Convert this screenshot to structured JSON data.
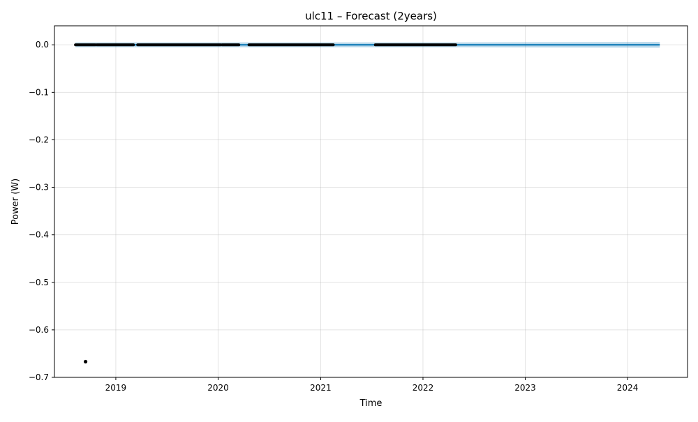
{
  "chart_data": {
    "type": "line",
    "title": "ulc11 – Forecast (2years)",
    "xlabel": "Time",
    "ylabel": "Power (W)",
    "xlim": [
      "2018-05-27",
      "2024-08-02"
    ],
    "ylim": [
      -0.7,
      0.04
    ],
    "grid": true,
    "x_ticks": [
      "2019-01-01",
      "2020-01-01",
      "2021-01-01",
      "2022-01-01",
      "2023-01-01",
      "2024-01-01"
    ],
    "x_tick_labels": [
      "2019",
      "2020",
      "2021",
      "2022",
      "2023",
      "2024"
    ],
    "y_ticks": [
      0.0,
      -0.1,
      -0.2,
      -0.3,
      -0.4,
      -0.5,
      -0.6,
      -0.7
    ],
    "y_tick_labels": [
      "0.0",
      "−0.1",
      "−0.2",
      "−0.3",
      "−0.4",
      "−0.5",
      "−0.6",
      "−0.7"
    ],
    "series": [
      {
        "role": "forecast",
        "style": "line",
        "color": "#0072B2",
        "x": [
          "2018-08-10",
          "2024-04-25"
        ],
        "y": [
          0.0,
          0.0
        ]
      },
      {
        "role": "uncertainty_interval",
        "style": "band",
        "color": "#0072B2",
        "x": [
          "2018-08-10",
          "2020-03-01",
          "2021-06-01",
          "2022-06-01",
          "2024-04-25"
        ],
        "y_lower": [
          -0.004,
          -0.004,
          -0.004,
          -0.005,
          -0.006
        ],
        "y_upper": [
          0.004,
          0.004,
          0.004,
          0.005,
          0.006
        ]
      },
      {
        "role": "observed",
        "style": "points",
        "color": "#000000",
        "segments": [
          {
            "x_start": "2018-08-10",
            "x_end": "2018-10-20",
            "y": 0.0
          },
          {
            "x_start": "2018-10-25",
            "x_end": "2019-03-05",
            "y": 0.0
          },
          {
            "x_start": "2019-03-20",
            "x_end": "2020-01-10",
            "y": 0.0
          },
          {
            "x_start": "2020-01-15",
            "x_end": "2020-03-15",
            "y": 0.0
          },
          {
            "x_start": "2020-04-20",
            "x_end": "2021-02-15",
            "y": 0.0
          },
          {
            "x_start": "2021-07-15",
            "x_end": "2022-04-28",
            "y": 0.0
          }
        ],
        "outliers": [
          {
            "x": "2018-09-15",
            "y": -0.667
          }
        ]
      }
    ]
  }
}
